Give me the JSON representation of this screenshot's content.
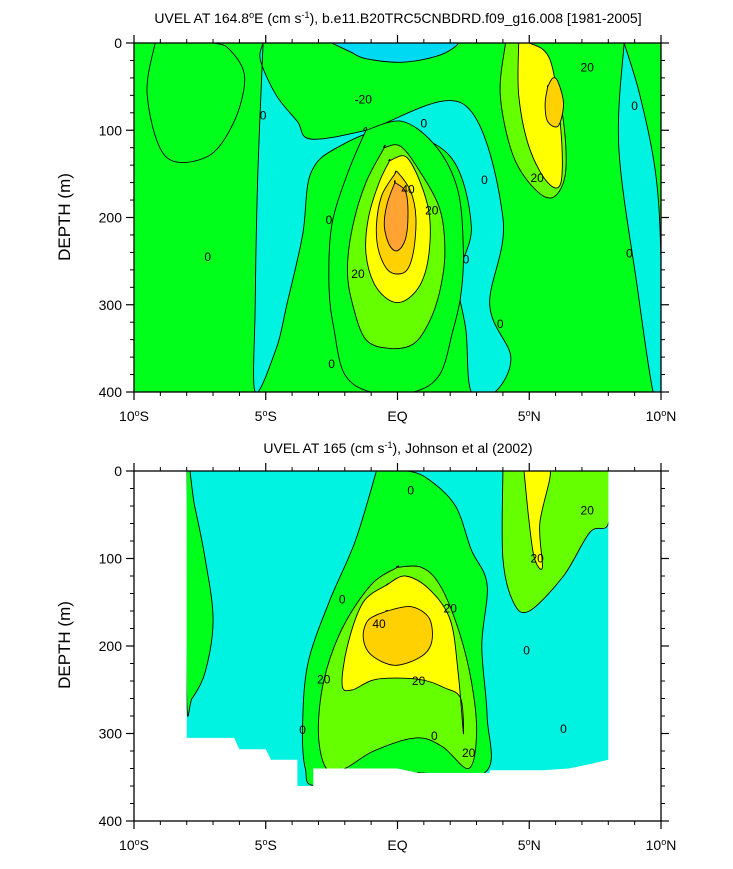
{
  "palette": {
    "c_neg20": "#00d9f2",
    "c_0": "#00f2e0",
    "c_10": "#00ff1a",
    "c_20": "#66ff00",
    "c_30": "#ffff00",
    "c_40": "#ffd100",
    "c_50": "#ffa333",
    "contour": "#000000"
  },
  "chart_data": [
    {
      "type": "contour",
      "title": "UVEL AT 164.8°E (cm s-1), b.e11.B20TRC5CNBDRD.f09_g16.008 [1981-2005]",
      "title_parts": {
        "prefix": "UVEL AT 164.8",
        "deg": "o",
        "mid": "E (cm s",
        "exp": "-1",
        "suffix": "), b.e11.B20TRC5CNBDRD.f09_g16.008 [1981-2005]"
      },
      "xlabel": "",
      "ylabel": "DEPTH (m)",
      "x_range": [
        -10,
        10
      ],
      "y_range": [
        0,
        400
      ],
      "y_reversed": true,
      "x_ticks": [
        {
          "value": -10,
          "num": "10",
          "sup": "o",
          "hem": "S"
        },
        {
          "value": -5,
          "num": "5",
          "sup": "o",
          "hem": "S"
        },
        {
          "value": 0,
          "num": "EQ",
          "sup": "",
          "hem": ""
        },
        {
          "value": 5,
          "num": "5",
          "sup": "o",
          "hem": "N"
        },
        {
          "value": 10,
          "num": "10",
          "sup": "o",
          "hem": "N"
        }
      ],
      "y_ticks": [
        0,
        100,
        200,
        300,
        400
      ],
      "contour_interval": 10,
      "background_level": "c_10",
      "regions": [
        {
          "name": "west-cyan-band",
          "level": "c_0",
          "lat": [
            -5.1,
            -5.2,
            -4.6,
            -3.8,
            -3.3,
            -1.2,
            2.5,
            4.0,
            3.5,
            4.3,
            3.7,
            2.8,
            2.6,
            2.3,
            2.8,
            2.0,
            -0.3,
            -2.3,
            -3.3,
            -3.6,
            -4.2,
            -4.6,
            -5.4,
            -5.4,
            -5.3,
            -5.1
          ],
          "depth": [
            0,
            20,
            60,
            90,
            110,
            100,
            70,
            200,
            300,
            360,
            400,
            400,
            330,
            270,
            210,
            130,
            100,
            120,
            150,
            220,
            300,
            350,
            400,
            300,
            150,
            0
          ]
        },
        {
          "name": "surface-negative-core",
          "level": "c_neg20",
          "lat": [
            -2.5,
            -1.8,
            -1.2,
            0.2,
            1.6,
            2.3,
            1.5,
            0.0,
            -1.4,
            -2.5
          ],
          "depth": [
            0,
            10,
            18,
            22,
            14,
            0,
            0,
            0,
            0,
            0
          ]
        },
        {
          "name": "west-jet-green",
          "level": "c_10",
          "lat": [
            -9.2,
            -9.5,
            -8.8,
            -7.2,
            -6.2,
            -5.8,
            -6.3,
            -7.0,
            -9.2
          ],
          "depth": [
            0,
            60,
            130,
            130,
            90,
            40,
            10,
            0,
            0
          ]
        },
        {
          "name": "east-cyan-band",
          "level": "c_0",
          "lat": [
            8.6,
            9.2,
            9.8,
            10.0,
            10.0,
            9.7,
            9.1,
            8.4,
            8.6
          ],
          "depth": [
            0,
            60,
            150,
            250,
            400,
            400,
            280,
            120,
            0
          ]
        },
        {
          "name": "nh-jet-20",
          "level": "c_20",
          "lat": [
            4.1,
            3.9,
            4.4,
            5.3,
            6.0,
            6.4,
            6.1,
            5.0,
            4.1
          ],
          "depth": [
            0,
            60,
            130,
            170,
            175,
            140,
            60,
            0,
            0
          ]
        },
        {
          "name": "nh-jet-30",
          "level": "c_30",
          "lat": [
            4.6,
            4.6,
            5.0,
            5.7,
            6.2,
            6.2,
            5.8,
            5.0,
            4.6
          ],
          "depth": [
            0,
            60,
            120,
            160,
            160,
            100,
            20,
            0,
            0
          ]
        },
        {
          "name": "nh-jet-40",
          "level": "c_40",
          "lat": [
            5.7,
            5.6,
            5.7,
            6.1,
            6.3,
            6.1,
            5.9,
            5.7
          ],
          "depth": [
            50,
            70,
            90,
            95,
            70,
            45,
            40,
            50
          ]
        },
        {
          "name": "euc-10",
          "level": "c_10",
          "lat": [
            -1.2,
            -1.9,
            -2.5,
            -2.6,
            -2.4,
            -2.0,
            -1.0,
            0.6,
            1.6,
            2.1,
            2.4,
            2.5,
            2.3,
            1.5,
            0.2,
            -1.2
          ],
          "depth": [
            100,
            150,
            210,
            280,
            330,
            380,
            400,
            400,
            380,
            330,
            290,
            240,
            170,
            120,
            90,
            100
          ]
        },
        {
          "name": "euc-20",
          "level": "c_20",
          "lat": [
            -0.5,
            -1.2,
            -1.7,
            -1.9,
            -1.7,
            -1.2,
            -0.3,
            0.6,
            1.2,
            1.6,
            1.8,
            1.6,
            0.8,
            0.1,
            -0.5
          ],
          "depth": [
            120,
            160,
            210,
            260,
            300,
            340,
            350,
            345,
            320,
            285,
            240,
            190,
            145,
            118,
            120
          ]
        },
        {
          "name": "euc-30",
          "level": "c_30",
          "lat": [
            -0.3,
            -0.7,
            -1.1,
            -1.2,
            -0.9,
            -0.3,
            0.3,
            0.9,
            1.2,
            1.2,
            0.8,
            0.3,
            -0.3
          ],
          "depth": [
            135,
            160,
            200,
            240,
            275,
            295,
            295,
            275,
            240,
            195,
            155,
            130,
            135
          ]
        },
        {
          "name": "euc-40",
          "level": "c_40",
          "lat": [
            -0.1,
            -0.6,
            -0.8,
            -0.7,
            -0.3,
            0.3,
            0.6,
            0.7,
            0.5,
            0.0,
            -0.1
          ],
          "depth": [
            150,
            175,
            210,
            240,
            262,
            262,
            240,
            200,
            170,
            148,
            150
          ]
        },
        {
          "name": "euc-50",
          "level": "c_50",
          "lat": [
            -0.1,
            -0.4,
            -0.5,
            -0.3,
            0.0,
            0.3,
            0.4,
            0.3,
            -0.1
          ],
          "depth": [
            160,
            185,
            210,
            232,
            238,
            225,
            195,
            170,
            160
          ]
        }
      ],
      "contour_labels": [
        {
          "text": "0",
          "lat": -5.1,
          "depth": 83
        },
        {
          "text": "-20",
          "lat": -1.3,
          "depth": 65
        },
        {
          "text": "0",
          "lat": 1.0,
          "depth": 92
        },
        {
          "text": "20",
          "lat": 7.2,
          "depth": 28
        },
        {
          "text": "0",
          "lat": 9.0,
          "depth": 72
        },
        {
          "text": "0",
          "lat": 3.3,
          "depth": 157
        },
        {
          "text": "40",
          "lat": 0.4,
          "depth": 168
        },
        {
          "text": "20",
          "lat": 1.3,
          "depth": 192
        },
        {
          "text": "20",
          "lat": 5.3,
          "depth": 155
        },
        {
          "text": "0",
          "lat": -7.2,
          "depth": 245
        },
        {
          "text": "0",
          "lat": -2.6,
          "depth": 203
        },
        {
          "text": "20",
          "lat": -1.5,
          "depth": 265
        },
        {
          "text": "0",
          "lat": 2.6,
          "depth": 248
        },
        {
          "text": "0",
          "lat": 8.8,
          "depth": 241
        },
        {
          "text": "0",
          "lat": 3.9,
          "depth": 322
        },
        {
          "text": "0",
          "lat": -2.5,
          "depth": 368
        }
      ]
    },
    {
      "type": "contour",
      "title": "UVEL AT 165 (cm s-1), Johnson et al (2002)",
      "title_parts": {
        "prefix": "UVEL AT 165 (cm s",
        "deg": "",
        "mid": "",
        "exp": "-1",
        "suffix": "), Johnson et al (2002)"
      },
      "xlabel": "",
      "ylabel": "DEPTH (m)",
      "x_range": [
        -10,
        10
      ],
      "y_range": [
        0,
        400
      ],
      "y_reversed": true,
      "x_ticks": [
        {
          "value": -10,
          "num": "10",
          "sup": "o",
          "hem": "S"
        },
        {
          "value": -5,
          "num": "5",
          "sup": "o",
          "hem": "S"
        },
        {
          "value": 0,
          "num": "EQ",
          "sup": "",
          "hem": ""
        },
        {
          "value": 5,
          "num": "5",
          "sup": "o",
          "hem": "N"
        },
        {
          "value": 10,
          "num": "10",
          "sup": "o",
          "hem": "N"
        }
      ],
      "y_ticks": [
        0,
        100,
        200,
        300,
        400
      ],
      "contour_interval": 10,
      "data_domain": {
        "lat": [
          -8.0,
          -8.0,
          -6.2,
          -6.0,
          -5.0,
          -4.8,
          -3.8,
          -3.8,
          -3.2,
          -3.2,
          0.0,
          0.8,
          3.5,
          3.5,
          5.5,
          6.5,
          7.3,
          8.0,
          8.0,
          8.0,
          -8.0
        ],
        "depth": [
          0,
          305,
          305,
          318,
          318,
          330,
          330,
          360,
          360,
          340,
          340,
          345,
          345,
          342,
          342,
          340,
          335,
          330,
          0,
          0,
          0
        ]
      },
      "background_level": "c_0",
      "regions": [
        {
          "name": "obs-west-green-strip",
          "level": "c_10",
          "lat": [
            -8.0,
            -7.7,
            -7.3,
            -7.0,
            -7.3,
            -7.8,
            -8.0
          ],
          "depth": [
            0,
            40,
            100,
            170,
            230,
            260,
            260
          ]
        },
        {
          "name": "obs-band-10",
          "level": "c_10",
          "lat": [
            -0.8,
            -1.6,
            -2.6,
            -3.4,
            -3.6,
            -3.5,
            -3.0,
            0.3,
            3.3,
            3.4,
            3.2,
            3.4,
            2.8,
            2.2,
            1.2,
            0.4,
            -0.8
          ],
          "depth": [
            0,
            80,
            150,
            220,
            290,
            340,
            360,
            345,
            345,
            280,
            200,
            130,
            90,
            40,
            10,
            0,
            0
          ]
        },
        {
          "name": "obs-nh-20",
          "level": "c_20",
          "lat": [
            4.0,
            4.0,
            4.4,
            5.0,
            6.3,
            7.3,
            8.0,
            8.0,
            4.0
          ],
          "depth": [
            0,
            100,
            150,
            160,
            120,
            70,
            60,
            0,
            0
          ]
        },
        {
          "name": "obs-nh-30",
          "level": "c_30",
          "lat": [
            4.8,
            5.0,
            5.2,
            5.5,
            5.4,
            5.8,
            5.1,
            4.8
          ],
          "depth": [
            0,
            60,
            100,
            110,
            60,
            0,
            0,
            0
          ]
        },
        {
          "name": "obs-euc-20",
          "level": "c_20",
          "lat": [
            0.0,
            -1.0,
            -2.1,
            -2.8,
            -3.0,
            -2.7,
            -2.0,
            -0.9,
            0.7,
            1.7,
            2.7,
            3.0,
            2.8,
            2.3,
            1.6,
            0.9,
            0.0
          ],
          "depth": [
            110,
            130,
            180,
            240,
            300,
            340,
            340,
            320,
            305,
            315,
            340,
            300,
            240,
            180,
            130,
            110,
            110
          ]
        },
        {
          "name": "obs-euc-30",
          "level": "c_30",
          "lat": [
            -0.4,
            -1.3,
            -1.9,
            -2.1,
            -1.7,
            -0.8,
            0.8,
            1.8,
            2.4,
            2.5,
            2.3,
            2.0,
            1.2,
            0.3,
            -0.4
          ],
          "depth": [
            130,
            150,
            200,
            245,
            250,
            238,
            238,
            248,
            260,
            300,
            230,
            170,
            135,
            120,
            130
          ]
        },
        {
          "name": "obs-euc-40",
          "level": "c_40",
          "lat": [
            -0.4,
            -1.1,
            -1.3,
            -1.0,
            -0.1,
            0.9,
            1.3,
            1.2,
            0.5,
            -0.4
          ],
          "depth": [
            160,
            170,
            190,
            210,
            222,
            212,
            195,
            168,
            155,
            160
          ]
        }
      ],
      "contour_labels": [
        {
          "text": "0",
          "lat": 0.5,
          "depth": 22
        },
        {
          "text": "20",
          "lat": 7.2,
          "depth": 45
        },
        {
          "text": "20",
          "lat": 5.3,
          "depth": 100
        },
        {
          "text": "0",
          "lat": -2.1,
          "depth": 147
        },
        {
          "text": "20",
          "lat": 2.0,
          "depth": 157
        },
        {
          "text": "40",
          "lat": -0.7,
          "depth": 175
        },
        {
          "text": "0",
          "lat": 4.9,
          "depth": 205
        },
        {
          "text": "20",
          "lat": -2.8,
          "depth": 238
        },
        {
          "text": "20",
          "lat": 0.8,
          "depth": 240
        },
        {
          "text": "0",
          "lat": 6.3,
          "depth": 295
        },
        {
          "text": "0",
          "lat": -3.6,
          "depth": 296
        },
        {
          "text": "0",
          "lat": 1.4,
          "depth": 303
        },
        {
          "text": "20",
          "lat": 2.7,
          "depth": 322
        }
      ]
    }
  ]
}
